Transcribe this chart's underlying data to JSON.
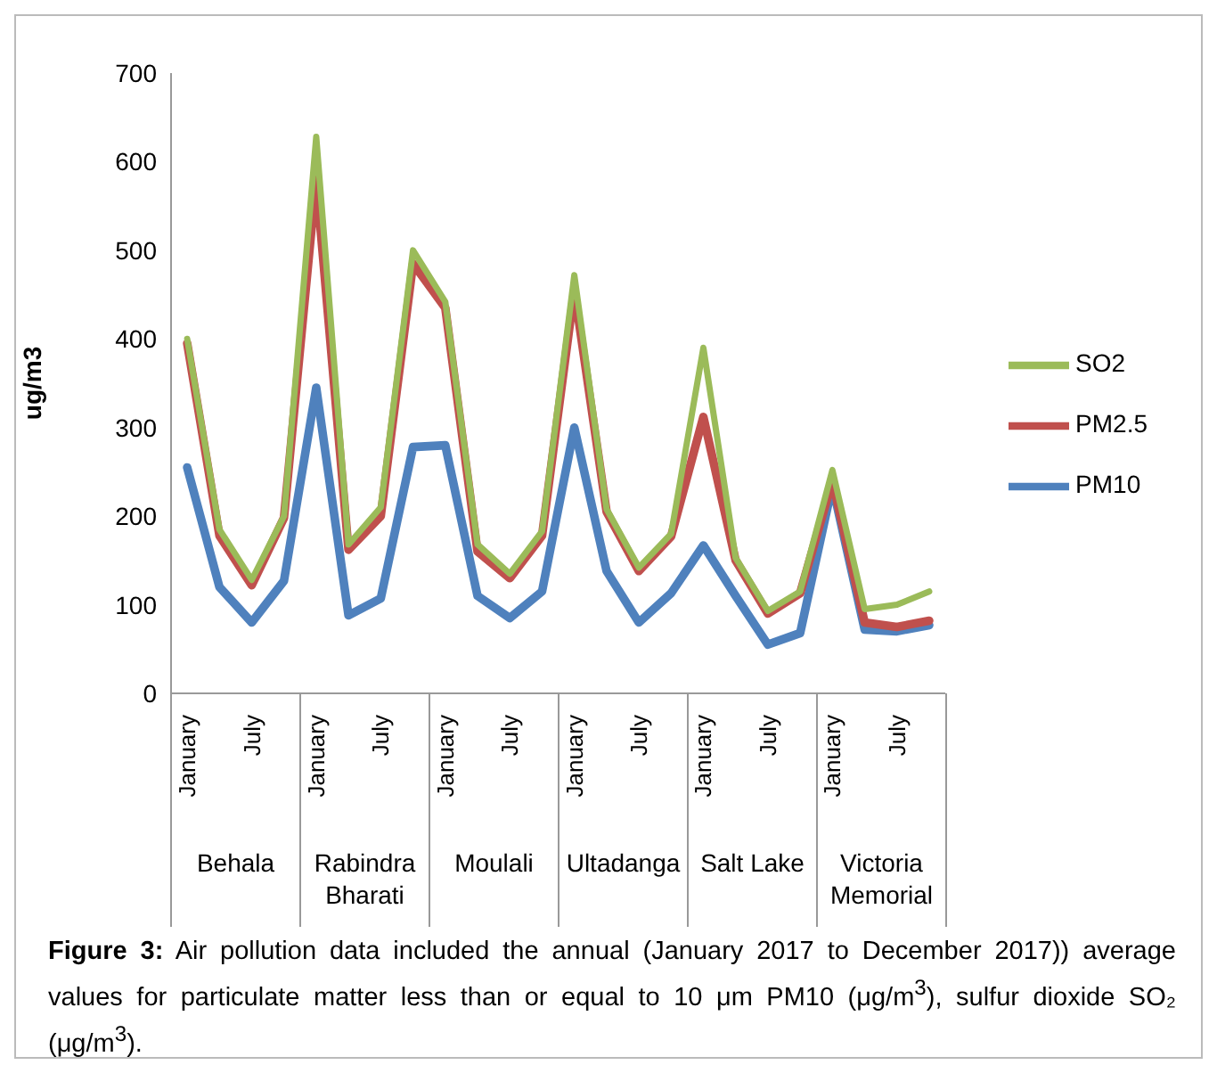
{
  "chart_data": {
    "type": "line",
    "ylabel": "ug/m3",
    "categories": [
      "January",
      null,
      "July",
      null,
      "January",
      null,
      "July",
      null,
      "January",
      null,
      "July",
      null,
      "January",
      null,
      "July",
      null,
      "January",
      null,
      "July",
      null,
      "January",
      null,
      "July",
      null
    ],
    "series": [
      {
        "name": "SO2",
        "color": "#9bbb59",
        "values": [
          400,
          185,
          128,
          200,
          628,
          168,
          210,
          500,
          442,
          168,
          135,
          183,
          472,
          208,
          142,
          180,
          390,
          153,
          93,
          115,
          252,
          95,
          100,
          115
        ]
      },
      {
        "name": "PM2.5",
        "color": "#c0504d",
        "values": [
          395,
          178,
          122,
          198,
          580,
          162,
          200,
          485,
          435,
          160,
          130,
          178,
          455,
          205,
          138,
          177,
          312,
          150,
          90,
          113,
          240,
          80,
          75,
          82
        ]
      },
      {
        "name": "PM10",
        "color": "#4f81bd",
        "values": [
          255,
          120,
          80,
          127,
          345,
          88,
          107,
          278,
          280,
          110,
          85,
          115,
          300,
          138,
          80,
          113,
          167,
          110,
          55,
          68,
          235,
          72,
          70,
          77
        ]
      }
    ],
    "ylim": [
      0,
      700
    ],
    "yticks": [
      0,
      100,
      200,
      300,
      400,
      500,
      600,
      700
    ],
    "legend": "right",
    "marker": "none",
    "line_style": "solid",
    "annotations": [
      "Behala",
      "Rabindra Bharati",
      "Moulali",
      "Ultadanga",
      "Salt Lake",
      "Victoria Memorial",
      "Figure 3: Air pollution data included the annual (January 2017 to December 2017)) average values for particulate matter less than or equal to 10 μm PM10 (μg/m$^{3}$), sulfur dioxide SO₂ (μg/m$^{3}$)."
    ]
  }
}
